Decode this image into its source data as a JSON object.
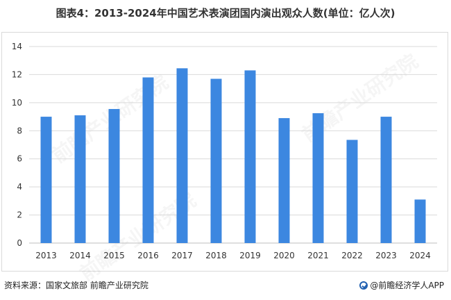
{
  "title": "图表4：2013-2024年中国艺术表演团国内演出观众人数(单位：亿人次)",
  "source": "资料来源：国家文旅部 前瞻产业研究院",
  "brand": "@前瞻经济学人APP",
  "watermark": "前瞻产业研究院",
  "colors": {
    "bar": "#3c87e0",
    "grid": "#d9d9d9",
    "axis": "#bfbfbf"
  },
  "chart_data": {
    "type": "bar",
    "categories": [
      "2013",
      "2014",
      "2015",
      "2016",
      "2017",
      "2018",
      "2019",
      "2020",
      "2021",
      "2022",
      "2023",
      "2024"
    ],
    "series": [
      {
        "values": [
          9.0,
          9.1,
          9.55,
          11.8,
          12.45,
          11.7,
          12.3,
          8.9,
          9.25,
          7.35,
          9.0,
          3.1
        ]
      }
    ],
    "ylim": [
      0,
      14
    ],
    "yticks": [
      0,
      2,
      4,
      6,
      8,
      10,
      12,
      14
    ],
    "grid": true,
    "legend": "none"
  }
}
